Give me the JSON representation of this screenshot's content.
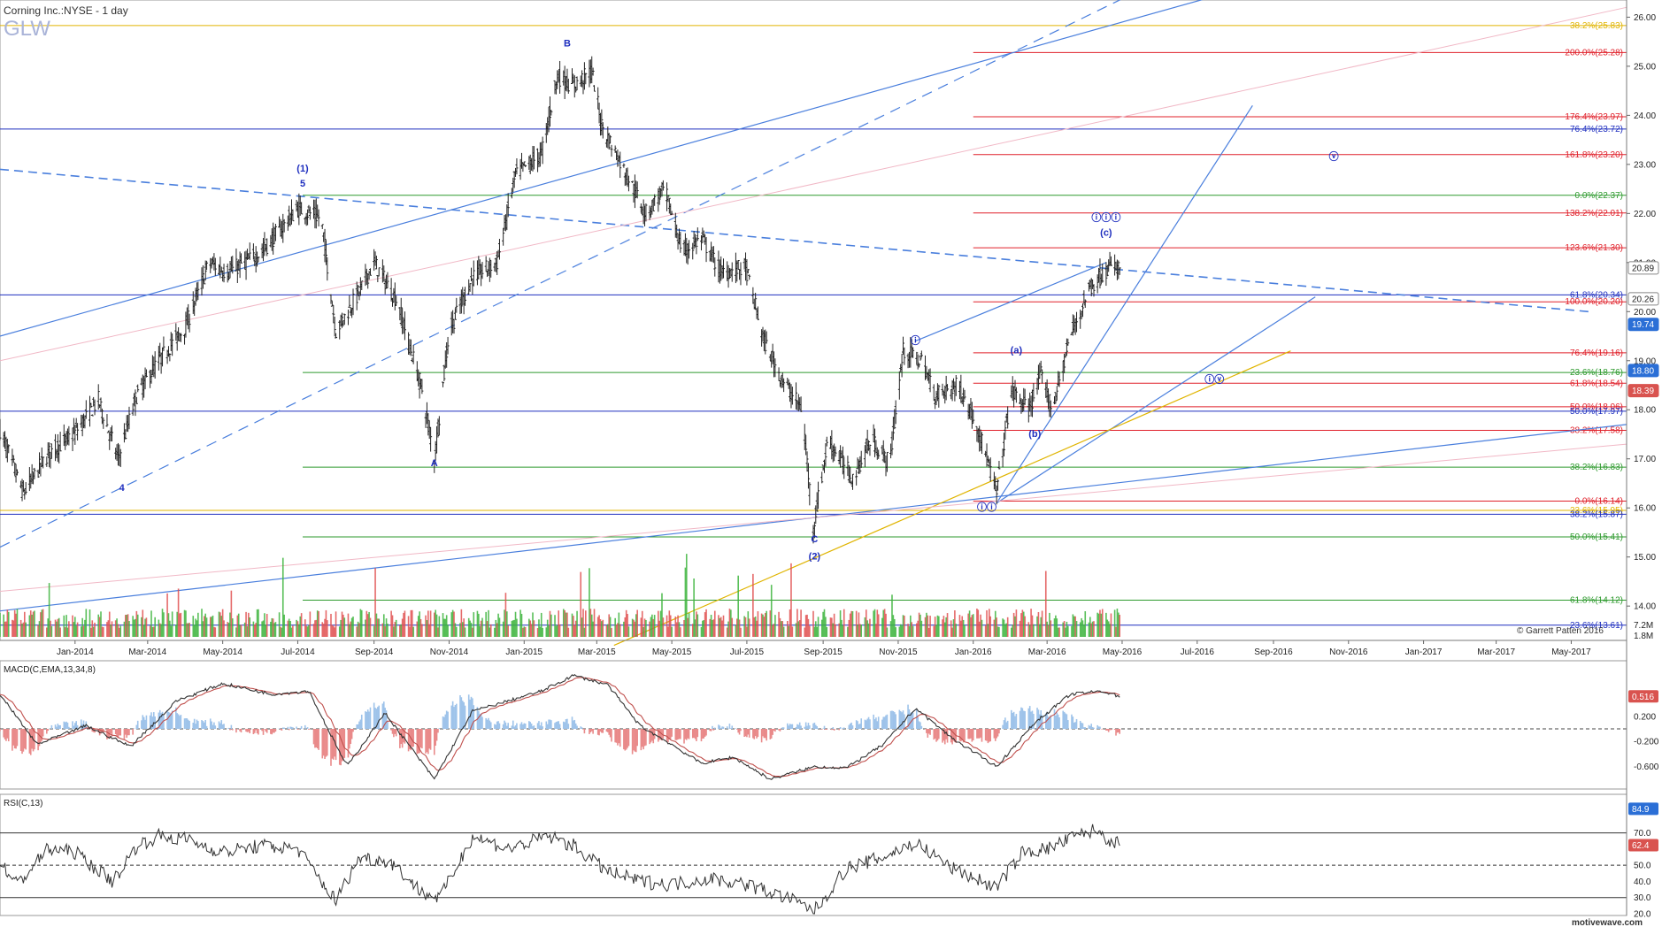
{
  "header": {
    "title": "Corning Inc.:NYSE - 1 day",
    "symbol": "GLW"
  },
  "footer": {
    "watermark": "motivewave.com",
    "copyright": "© Garrett Patten 2016"
  },
  "colors": {
    "bar": "#222222",
    "axis_badge_blue": "#2b6fd6",
    "axis_badge_red": "#d9534f",
    "fib_red": "#e0202a",
    "fib_green": "#2e9a2e",
    "fib_blue": "#1f2fbf",
    "fib_gold": "#e0b400",
    "channel_blue": "#4a7fdd",
    "vol_green": "#3cb43c",
    "vol_red": "#e05050",
    "macd_line": "#333333",
    "signal_line": "#c0504d",
    "hist_pos": "#9ec3ea",
    "hist_neg": "#e98a8a"
  },
  "chart_data": [
    {
      "type": "candlestick",
      "title": "Corning Inc.:NYSE - 1 day",
      "ylim": [
        13.5,
        26.5
      ],
      "x_ticks": [
        "Jan-2014",
        "Mar-2014",
        "May-2014",
        "Jul-2014",
        "Sep-2014",
        "Nov-2014",
        "Jan-2015",
        "Mar-2015",
        "May-2015",
        "Jul-2015",
        "Sep-2015",
        "Nov-2015",
        "Jan-2016",
        "Mar-2016",
        "May-2016",
        "Jul-2016",
        "Sep-2016",
        "Nov-2016",
        "Jan-2017",
        "Mar-2017",
        "May-2017"
      ],
      "y_ticks": [
        14.0,
        15.0,
        16.0,
        17.0,
        18.0,
        19.0,
        20.0,
        21.0,
        22.0,
        23.0,
        24.0,
        25.0,
        26.0
      ],
      "price_badges": [
        {
          "label": "20.89",
          "value": 20.89,
          "color": "none"
        },
        {
          "label": "20.26",
          "value": 20.26,
          "color": "none"
        },
        {
          "label": "19.74",
          "value": 19.74,
          "color": "blue"
        },
        {
          "label": "18.80",
          "value": 18.8,
          "color": "blue"
        },
        {
          "label": "18.39",
          "value": 18.39,
          "color": "red"
        }
      ],
      "price_path": [
        [
          "2013-11-01",
          17.6
        ],
        [
          "2013-11-20",
          16.3
        ],
        [
          "2013-12-10",
          17.1
        ],
        [
          "2013-12-31",
          17.5
        ],
        [
          "2014-01-20",
          18.2
        ],
        [
          "2014-02-05",
          17.0
        ],
        [
          "2014-02-20",
          18.3
        ],
        [
          "2014-03-10",
          19.0
        ],
        [
          "2014-04-01",
          19.7
        ],
        [
          "2014-04-20",
          21.0
        ],
        [
          "2014-05-05",
          20.8
        ],
        [
          "2014-06-01",
          21.2
        ],
        [
          "2014-07-01",
          22.1
        ],
        [
          "2014-07-20",
          21.9
        ],
        [
          "2014-08-01",
          19.6
        ],
        [
          "2014-08-20",
          20.4
        ],
        [
          "2014-09-01",
          21.0
        ],
        [
          "2014-09-20",
          20.2
        ],
        [
          "2014-10-10",
          18.4
        ],
        [
          "2014-10-20",
          17.0
        ],
        [
          "2014-11-01",
          19.6
        ],
        [
          "2014-11-20",
          20.7
        ],
        [
          "2014-12-10",
          21.0
        ],
        [
          "2014-12-25",
          22.8
        ],
        [
          "2015-01-15",
          23.2
        ],
        [
          "2015-01-28",
          24.8
        ],
        [
          "2015-02-10",
          24.6
        ],
        [
          "2015-02-25",
          24.9
        ],
        [
          "2015-03-05",
          23.8
        ],
        [
          "2015-03-25",
          22.8
        ],
        [
          "2015-04-10",
          22.0
        ],
        [
          "2015-04-25",
          22.5
        ],
        [
          "2015-05-10",
          21.2
        ],
        [
          "2015-05-25",
          21.5
        ],
        [
          "2015-06-10",
          20.8
        ],
        [
          "2015-06-30",
          20.9
        ],
        [
          "2015-07-15",
          19.4
        ],
        [
          "2015-07-30",
          18.6
        ],
        [
          "2015-08-15",
          18.0
        ],
        [
          "2015-08-24",
          15.6
        ],
        [
          "2015-09-05",
          17.4
        ],
        [
          "2015-09-25",
          16.6
        ],
        [
          "2015-10-10",
          17.4
        ],
        [
          "2015-10-25",
          16.9
        ],
        [
          "2015-11-05",
          19.2
        ],
        [
          "2015-11-20",
          19.0
        ],
        [
          "2015-12-01",
          18.3
        ],
        [
          "2015-12-20",
          18.5
        ],
        [
          "2016-01-05",
          17.6
        ],
        [
          "2016-01-20",
          16.3
        ],
        [
          "2016-02-01",
          18.4
        ],
        [
          "2016-02-15",
          18.0
        ],
        [
          "2016-02-25",
          18.7
        ],
        [
          "2016-03-05",
          18.0
        ],
        [
          "2016-03-20",
          19.5
        ],
        [
          "2016-04-05",
          20.5
        ],
        [
          "2016-04-20",
          20.9
        ],
        [
          "2016-04-29",
          20.89
        ]
      ],
      "wave_labels": [
        {
          "text": "(1)",
          "date": "2014-07-05",
          "price": 22.85
        },
        {
          "text": "5",
          "date": "2014-07-05",
          "price": 22.55
        },
        {
          "text": "4",
          "date": "2014-02-08",
          "price": 16.35
        },
        {
          "text": "A",
          "date": "2014-10-20",
          "price": 16.85
        },
        {
          "text": "B",
          "date": "2015-02-05",
          "price": 25.4
        },
        {
          "text": "C",
          "date": "2015-08-25",
          "price": 15.3
        },
        {
          "text": "(2)",
          "date": "2015-08-25",
          "price": 14.95
        },
        {
          "text": "ⓘ",
          "date": "2015-11-15",
          "price": 19.35
        },
        {
          "text": "ⓘⓘ",
          "date": "2016-01-12",
          "price": 15.95
        },
        {
          "text": "(a)",
          "date": "2016-02-05",
          "price": 19.15
        },
        {
          "text": "(b)",
          "date": "2016-02-20",
          "price": 17.45
        },
        {
          "text": "(c)",
          "date": "2016-04-18",
          "price": 21.55
        },
        {
          "text": "ⓘⓘⓘ",
          "date": "2016-04-18",
          "price": 21.85
        },
        {
          "text": "ⓘⓥ",
          "date": "2016-07-15",
          "price": 18.55
        },
        {
          "text": "ⓥ",
          "date": "2016-10-20",
          "price": 23.1
        }
      ],
      "fib_levels": [
        {
          "label": "38.2%(25.83)",
          "price": 25.83,
          "color": "gold",
          "start": "2013-11-01"
        },
        {
          "label": "200.0%(25.28)",
          "price": 25.28,
          "color": "red",
          "start": "2016-01-01"
        },
        {
          "label": "176.4%(23.97)",
          "price": 23.97,
          "color": "red",
          "start": "2016-01-01"
        },
        {
          "label": "76.4%(23.72)",
          "price": 23.72,
          "color": "blue",
          "start": "2013-11-01"
        },
        {
          "label": "161.8%(23.20)",
          "price": 23.2,
          "color": "red",
          "start": "2016-01-01"
        },
        {
          "label": "0.0%(22.37)",
          "price": 22.37,
          "color": "green",
          "start": "2014-07-05"
        },
        {
          "label": "138.2%(22.01)",
          "price": 22.01,
          "color": "red",
          "start": "2016-01-01"
        },
        {
          "label": "123.6%(21.30)",
          "price": 21.3,
          "color": "red",
          "start": "2016-01-01"
        },
        {
          "label": "61.8%(20.34)",
          "price": 20.34,
          "color": "blue",
          "start": "2013-11-01"
        },
        {
          "label": "100.0%(20.20)",
          "price": 20.2,
          "color": "red",
          "start": "2016-01-01"
        },
        {
          "label": "76.4%(19.16)",
          "price": 19.16,
          "color": "red",
          "start": "2016-01-01"
        },
        {
          "label": "23.6%(18.76)",
          "price": 18.76,
          "color": "green",
          "start": "2014-07-05"
        },
        {
          "label": "61.8%(18.54)",
          "price": 18.54,
          "color": "red",
          "start": "2016-01-01"
        },
        {
          "label": "50.0%(18.06)",
          "price": 18.06,
          "color": "red",
          "start": "2016-01-01"
        },
        {
          "label": "50.0%(17.97)",
          "price": 17.97,
          "color": "blue",
          "start": "2013-11-01"
        },
        {
          "label": "38.2%(17.58)",
          "price": 17.58,
          "color": "red",
          "start": "2016-01-01"
        },
        {
          "label": "38.2%(16.83)",
          "price": 16.83,
          "color": "green",
          "start": "2014-07-05"
        },
        {
          "label": "0.0%(16.14)",
          "price": 16.14,
          "color": "red",
          "start": "2016-01-01"
        },
        {
          "label": "23.6%(15.95)",
          "price": 15.95,
          "color": "gold",
          "start": "2013-11-01"
        },
        {
          "label": "38.2%(15.87)",
          "price": 15.87,
          "color": "blue",
          "start": "2013-11-01"
        },
        {
          "label": "50.0%(15.41)",
          "price": 15.41,
          "color": "green",
          "start": "2014-07-05"
        },
        {
          "label": "61.8%(14.12)",
          "price": 14.12,
          "color": "green",
          "start": "2014-07-05"
        },
        {
          "label": "23.6%(13.61)",
          "price": 13.61,
          "color": "blue",
          "start": "2013-11-01"
        }
      ]
    },
    {
      "type": "bar",
      "title": "Volume",
      "y_ticks": [
        "7.2M",
        "1.8M"
      ]
    },
    {
      "type": "line",
      "title": "MACD(C,EMA,13,34,8)",
      "ylim": [
        -0.9,
        0.9
      ],
      "y_ticks": [
        0.2,
        -0.2,
        -0.6
      ],
      "badge": {
        "label": "0.516",
        "value": 0.516
      },
      "series": [
        {
          "name": "MACD",
          "values_by_date": [
            [
              "2013-11-01",
              0.55
            ],
            [
              "2013-12-01",
              -0.25
            ],
            [
              "2014-01-10",
              0.05
            ],
            [
              "2014-02-15",
              -0.28
            ],
            [
              "2014-03-25",
              0.45
            ],
            [
              "2014-05-01",
              0.72
            ],
            [
              "2014-06-10",
              0.55
            ],
            [
              "2014-07-10",
              0.6
            ],
            [
              "2014-08-10",
              -0.6
            ],
            [
              "2014-09-10",
              0.25
            ],
            [
              "2014-10-20",
              -0.8
            ],
            [
              "2014-11-20",
              0.28
            ],
            [
              "2014-12-20",
              0.45
            ],
            [
              "2015-01-15",
              0.6
            ],
            [
              "2015-02-10",
              0.85
            ],
            [
              "2015-03-10",
              0.7
            ],
            [
              "2015-04-05",
              0.05
            ],
            [
              "2015-05-01",
              -0.25
            ],
            [
              "2015-05-25",
              -0.55
            ],
            [
              "2015-06-20",
              -0.45
            ],
            [
              "2015-07-20",
              -0.8
            ],
            [
              "2015-08-25",
              -0.6
            ],
            [
              "2015-09-20",
              -0.62
            ],
            [
              "2015-10-20",
              -0.25
            ],
            [
              "2015-11-15",
              0.33
            ],
            [
              "2015-12-15",
              -0.15
            ],
            [
              "2016-01-20",
              -0.6
            ],
            [
              "2016-02-20",
              0.1
            ],
            [
              "2016-03-20",
              0.55
            ],
            [
              "2016-04-15",
              0.6
            ],
            [
              "2016-04-29",
              0.516
            ]
          ]
        }
      ]
    },
    {
      "type": "line",
      "title": "RSI(C,13)",
      "ylim": [
        20,
        90
      ],
      "y_ticks": [
        70.0,
        50.0,
        40.0,
        30.0,
        20.0
      ],
      "badges": [
        {
          "label": "84.9",
          "value": 84.9
        },
        {
          "label": "62.4",
          "value": 62.4
        }
      ],
      "series": [
        {
          "name": "RSI",
          "values_by_date": [
            [
              "2013-11-01",
              52
            ],
            [
              "2013-11-15",
              38
            ],
            [
              "2013-12-10",
              60
            ],
            [
              "2014-01-01",
              58
            ],
            [
              "2014-02-01",
              40
            ],
            [
              "2014-02-20",
              62
            ],
            [
              "2014-03-10",
              68
            ],
            [
              "2014-04-01",
              66
            ],
            [
              "2014-05-01",
              58
            ],
            [
              "2014-06-01",
              62
            ],
            [
              "2014-07-01",
              60
            ],
            [
              "2014-08-01",
              28
            ],
            [
              "2014-08-20",
              55
            ],
            [
              "2014-09-15",
              52
            ],
            [
              "2014-10-10",
              33
            ],
            [
              "2014-10-25",
              30
            ],
            [
              "2014-11-20",
              68
            ],
            [
              "2014-12-20",
              60
            ],
            [
              "2015-01-20",
              68
            ],
            [
              "2015-02-10",
              62
            ],
            [
              "2015-03-10",
              46
            ],
            [
              "2015-04-05",
              40
            ],
            [
              "2015-05-01",
              38
            ],
            [
              "2015-06-01",
              42
            ],
            [
              "2015-07-01",
              38
            ],
            [
              "2015-08-01",
              30
            ],
            [
              "2015-08-25",
              22
            ],
            [
              "2015-09-20",
              48
            ],
            [
              "2015-10-20",
              55
            ],
            [
              "2015-11-15",
              64
            ],
            [
              "2015-12-15",
              48
            ],
            [
              "2016-01-20",
              36
            ],
            [
              "2016-02-10",
              58
            ],
            [
              "2016-03-01",
              60
            ],
            [
              "2016-03-25",
              68
            ],
            [
              "2016-04-10",
              72
            ],
            [
              "2016-04-20",
              66
            ],
            [
              "2016-04-29",
              62.4
            ]
          ]
        }
      ]
    }
  ]
}
